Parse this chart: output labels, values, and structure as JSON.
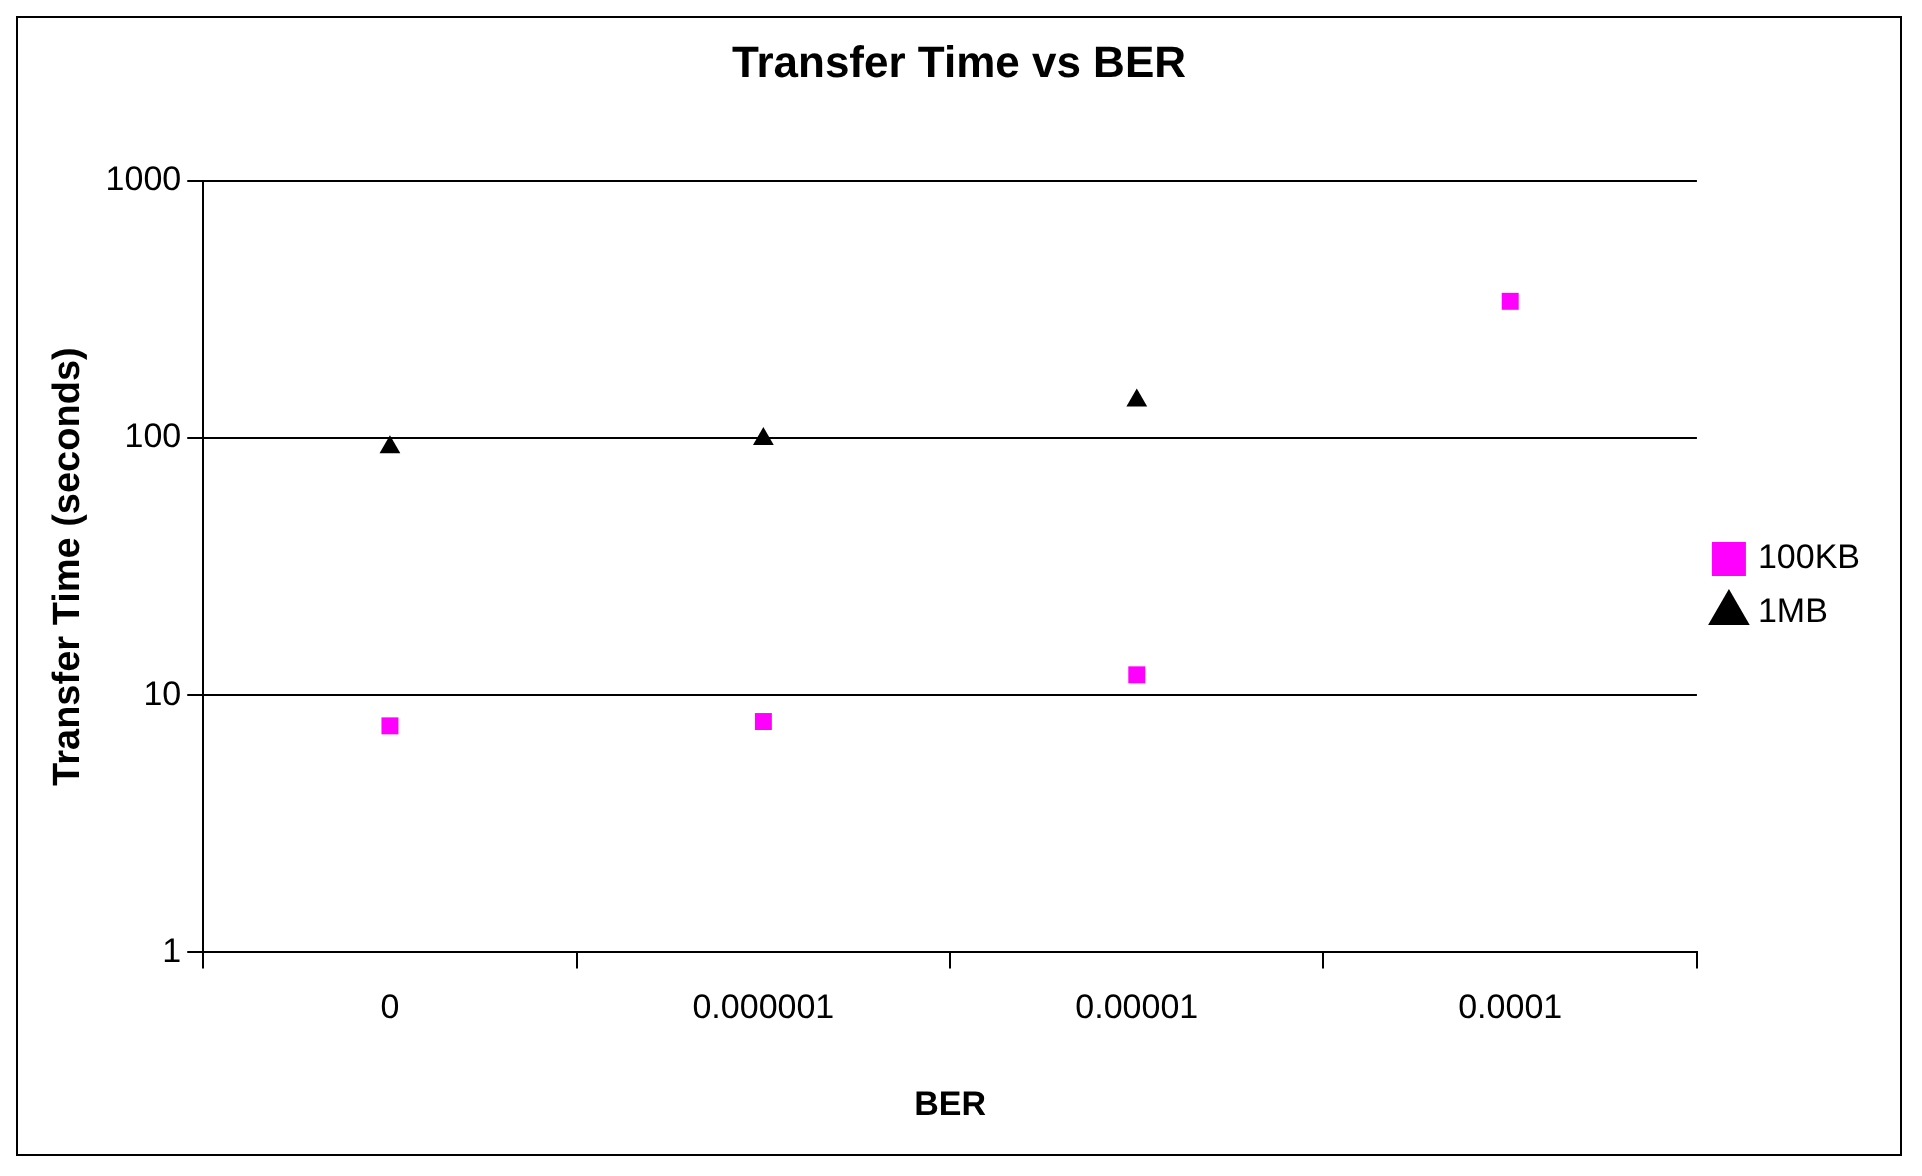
{
  "chart_data": {
    "type": "scatter",
    "title": "Transfer Time vs BER",
    "xlabel": "BER",
    "ylabel": "Transfer Time (seconds)",
    "categories": [
      "0",
      "0.000001",
      "0.00001",
      "0.0001"
    ],
    "series": [
      {
        "name": "100KB",
        "color": "#ff00ff",
        "marker": "square",
        "values": [
          7.6,
          7.9,
          12,
          340
        ]
      },
      {
        "name": "1MB",
        "color": "#000000",
        "marker": "triangle",
        "values": [
          92,
          99,
          140,
          null
        ]
      }
    ],
    "log": "y",
    "ylim": [
      1,
      1000
    ],
    "yticks": [
      1,
      10,
      100,
      1000
    ],
    "grid": "y",
    "legend": "right"
  }
}
